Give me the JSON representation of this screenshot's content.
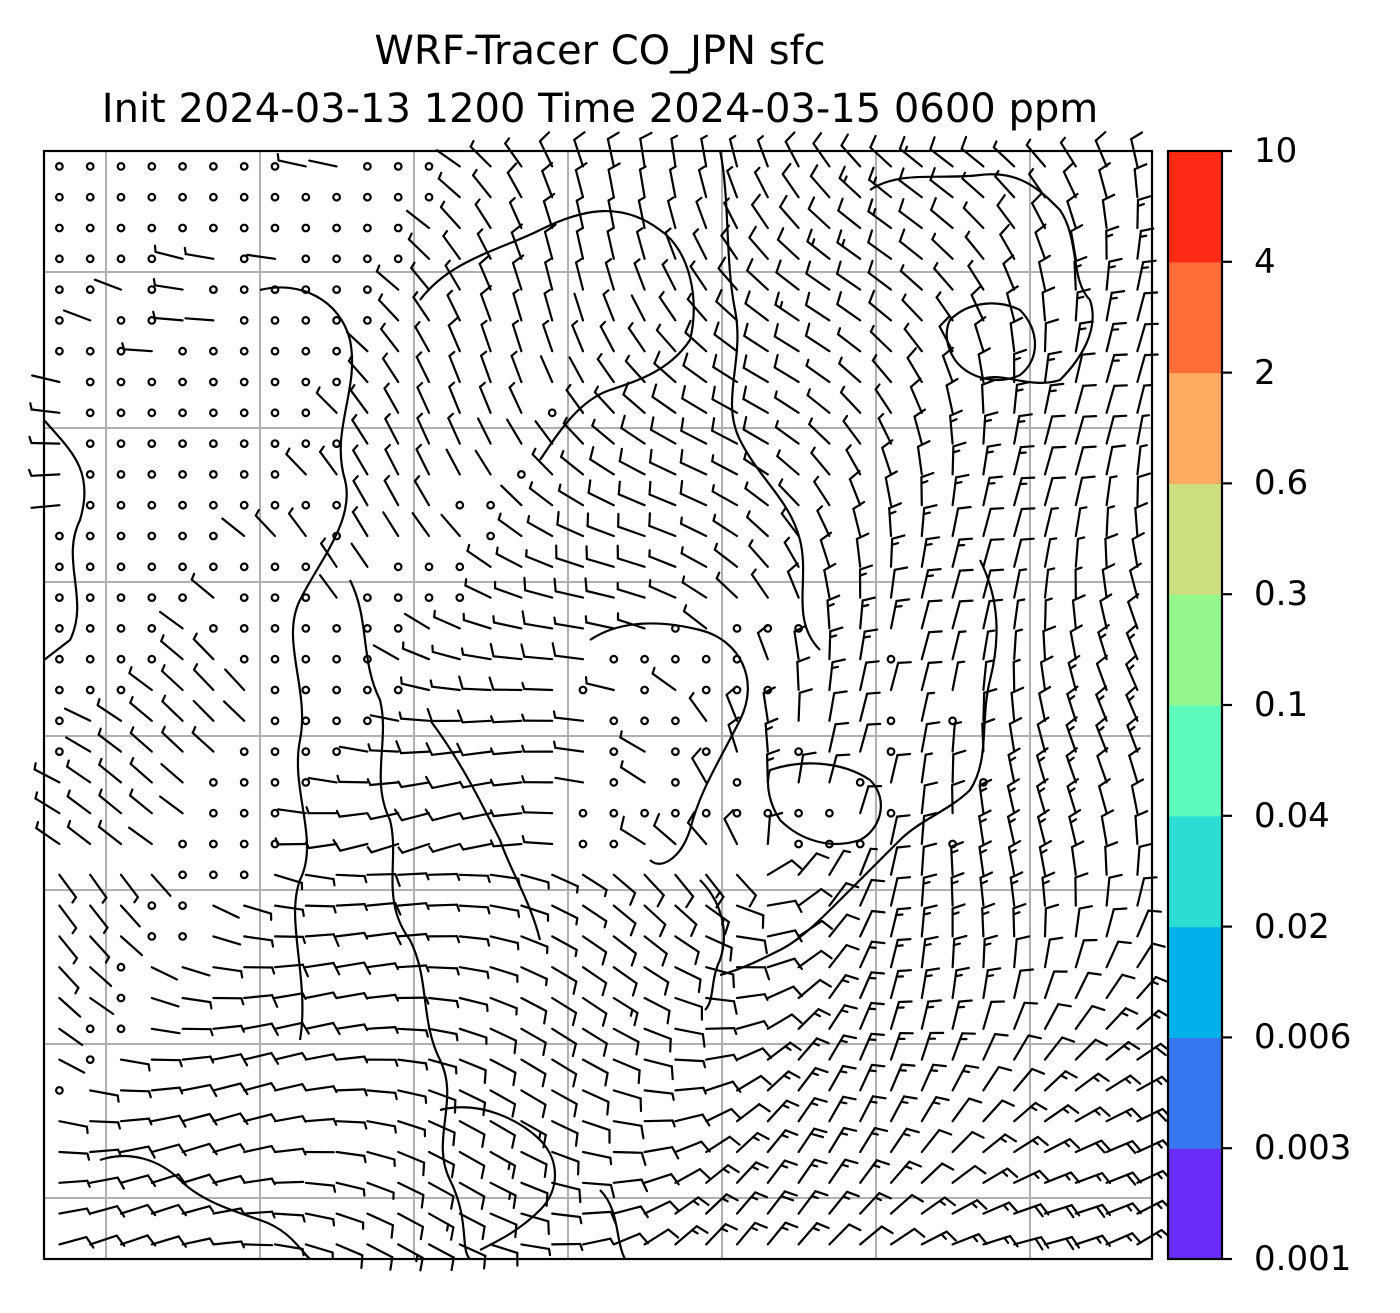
{
  "title": {
    "line1": "WRF-Tracer CO_JPN sfc",
    "line2": "Init 2024-03-13 1200 Time 2024-03-15 0600 ppm"
  },
  "colorbar": {
    "levels": [
      "0.001",
      "0.003",
      "0.006",
      "0.02",
      "0.04",
      "0.1",
      "0.3",
      "0.6",
      "2",
      "4",
      "10"
    ],
    "colors": [
      "#6a2cfb",
      "#3677f0",
      "#00b1ea",
      "#2ddcd2",
      "#5efbbd",
      "#94f78d",
      "#cde07f",
      "#ffab61",
      "#ff6e39",
      "#ff2a16"
    ]
  },
  "map": {
    "gridline_color": "#b0b0b0",
    "coastline_color": "#000000",
    "barb_color": "#000000",
    "tracer_field": "none above 0.001 ppm shown"
  }
}
